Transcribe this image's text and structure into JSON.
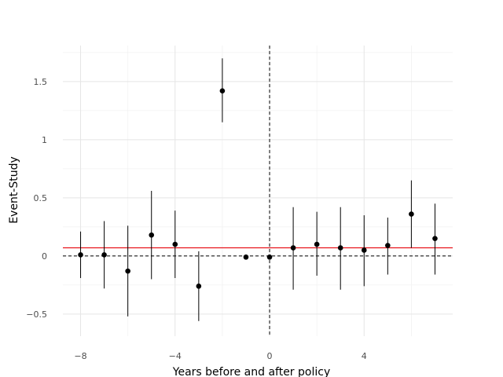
{
  "chart_data": {
    "type": "scatter",
    "title": "",
    "xlabel": "Years before and after policy",
    "ylabel": "Event-Study",
    "xlim": [
      -8.75,
      7.75
    ],
    "ylim": [
      -0.69,
      1.81
    ],
    "x_ticks": [
      -8,
      -4,
      0,
      4
    ],
    "x_tick_labels": [
      "−8",
      "−4",
      "0",
      "4"
    ],
    "y_ticks": [
      -0.5,
      0,
      0.5,
      1,
      1.5
    ],
    "y_tick_labels": [
      "−0.5",
      "0",
      "0.5",
      "1",
      "1.5"
    ],
    "grid": true,
    "legend": "none",
    "series": [
      {
        "x": [
          -8,
          -7,
          -6,
          -5,
          -4,
          -3,
          -2,
          -1,
          0,
          1,
          2,
          3,
          4,
          5,
          6,
          7
        ],
        "y": [
          0.01,
          0.01,
          -0.13,
          0.18,
          0.1,
          -0.26,
          1.42,
          -0.01,
          -0.01,
          0.07,
          0.1,
          0.07,
          0.05,
          0.09,
          0.36,
          0.15
        ],
        "lower": [
          -0.19,
          -0.28,
          -0.52,
          -0.2,
          -0.19,
          -0.56,
          1.15,
          -0.01,
          -0.01,
          -0.29,
          -0.17,
          -0.29,
          -0.26,
          -0.16,
          0.07,
          -0.16
        ],
        "upper": [
          0.21,
          0.3,
          0.26,
          0.56,
          0.39,
          0.04,
          1.7,
          -0.01,
          -0.01,
          0.42,
          0.38,
          0.42,
          0.35,
          0.33,
          0.65,
          0.45
        ]
      }
    ],
    "reference_lines": {
      "horizontal_dashed": 0,
      "vertical_dashed": 0,
      "horizontal_red": 0.07
    },
    "colors": {
      "points": "#000000",
      "error_bars": "#000000",
      "red_line": "#e8141c",
      "grid_major": "#e5e5e5",
      "grid_minor": "#f2f2f2"
    }
  }
}
